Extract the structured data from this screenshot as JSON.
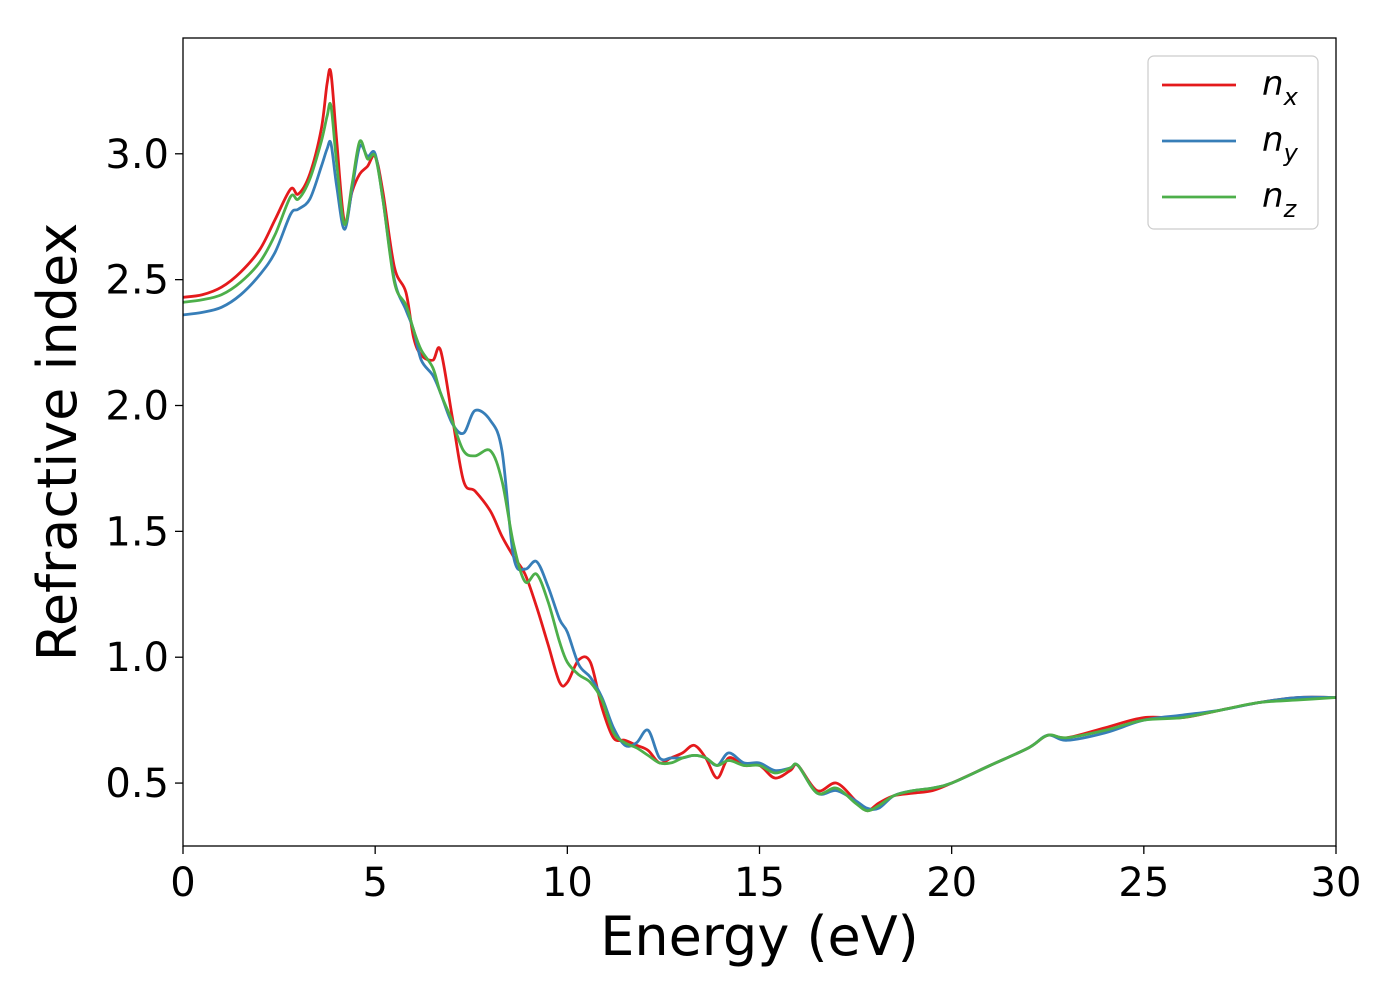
{
  "chart_data": {
    "type": "line",
    "title": "",
    "xlabel": "Energy (eV)",
    "ylabel": "Refractive index",
    "xlim": [
      0,
      30
    ],
    "ylim": [
      0.25,
      3.46
    ],
    "xticks": [
      0,
      5,
      10,
      15,
      20,
      25,
      30
    ],
    "xtick_labels": [
      "0",
      "5",
      "10",
      "15",
      "20",
      "25",
      "30"
    ],
    "yticks": [
      0.5,
      1.0,
      1.5,
      2.0,
      2.5,
      3.0
    ],
    "ytick_labels": [
      "0.5",
      "1.0",
      "1.5",
      "2.0",
      "2.5",
      "3.0"
    ],
    "grid": false,
    "legend_position": "top-right",
    "series": [
      {
        "name": "n_x",
        "legend_base": "n",
        "legend_sub": "x",
        "color": "#e41a1c",
        "x": [
          0,
          0.5,
          1.0,
          1.5,
          2.0,
          2.4,
          2.8,
          3.0,
          3.3,
          3.6,
          3.75,
          3.85,
          4.0,
          4.2,
          4.4,
          4.6,
          4.8,
          5.0,
          5.2,
          5.5,
          5.8,
          6.0,
          6.2,
          6.5,
          6.7,
          7.0,
          7.3,
          7.6,
          8.0,
          8.3,
          8.6,
          8.9,
          9.2,
          9.5,
          9.8,
          10.0,
          10.3,
          10.6,
          10.9,
          11.2,
          11.5,
          11.8,
          12.1,
          12.4,
          12.7,
          13.0,
          13.3,
          13.6,
          13.9,
          14.2,
          14.6,
          15.0,
          15.4,
          15.8,
          16.0,
          16.5,
          17.0,
          17.5,
          17.8,
          18.1,
          18.5,
          19.0,
          19.5,
          20.0,
          21.0,
          22.0,
          22.5,
          23.0,
          24.0,
          25.0,
          26.0,
          27.0,
          28.0,
          29.0,
          30.0
        ],
        "y": [
          2.43,
          2.44,
          2.47,
          2.53,
          2.62,
          2.74,
          2.86,
          2.84,
          2.92,
          3.1,
          3.28,
          3.32,
          3.05,
          2.73,
          2.85,
          2.92,
          2.95,
          2.99,
          2.85,
          2.55,
          2.45,
          2.27,
          2.2,
          2.18,
          2.22,
          1.96,
          1.7,
          1.66,
          1.58,
          1.48,
          1.4,
          1.33,
          1.2,
          1.05,
          0.9,
          0.9,
          0.99,
          0.98,
          0.8,
          0.68,
          0.67,
          0.65,
          0.63,
          0.58,
          0.6,
          0.62,
          0.65,
          0.6,
          0.52,
          0.6,
          0.57,
          0.57,
          0.52,
          0.55,
          0.57,
          0.47,
          0.5,
          0.43,
          0.39,
          0.42,
          0.45,
          0.46,
          0.47,
          0.5,
          0.57,
          0.64,
          0.69,
          0.68,
          0.72,
          0.76,
          0.76,
          0.79,
          0.82,
          0.84,
          0.84
        ]
      },
      {
        "name": "n_y",
        "legend_base": "n",
        "legend_sub": "y",
        "color": "#377eb8",
        "x": [
          0,
          0.5,
          1.0,
          1.5,
          2.0,
          2.4,
          2.8,
          3.0,
          3.3,
          3.6,
          3.75,
          3.85,
          4.0,
          4.2,
          4.4,
          4.6,
          4.8,
          5.0,
          5.2,
          5.5,
          5.8,
          6.0,
          6.2,
          6.5,
          6.7,
          7.0,
          7.3,
          7.6,
          8.0,
          8.3,
          8.6,
          8.9,
          9.2,
          9.5,
          9.8,
          10.0,
          10.3,
          10.6,
          10.9,
          11.2,
          11.5,
          11.8,
          12.1,
          12.4,
          12.7,
          13.0,
          13.3,
          13.6,
          13.9,
          14.2,
          14.6,
          15.0,
          15.4,
          15.8,
          16.0,
          16.5,
          17.0,
          17.5,
          17.8,
          18.1,
          18.5,
          19.0,
          19.5,
          20.0,
          21.0,
          22.0,
          22.5,
          23.0,
          24.0,
          25.0,
          26.0,
          27.0,
          28.0,
          29.0,
          30.0
        ],
        "y": [
          2.36,
          2.37,
          2.39,
          2.44,
          2.52,
          2.61,
          2.76,
          2.78,
          2.82,
          2.95,
          3.02,
          3.04,
          2.87,
          2.7,
          2.86,
          3.03,
          2.99,
          3.0,
          2.82,
          2.5,
          2.38,
          2.3,
          2.18,
          2.12,
          2.05,
          1.93,
          1.89,
          1.98,
          1.94,
          1.82,
          1.4,
          1.35,
          1.38,
          1.28,
          1.15,
          1.1,
          0.97,
          0.92,
          0.84,
          0.72,
          0.65,
          0.66,
          0.71,
          0.6,
          0.6,
          0.6,
          0.61,
          0.6,
          0.57,
          0.62,
          0.58,
          0.58,
          0.55,
          0.56,
          0.57,
          0.46,
          0.47,
          0.43,
          0.4,
          0.4,
          0.45,
          0.47,
          0.48,
          0.5,
          0.57,
          0.64,
          0.69,
          0.67,
          0.7,
          0.75,
          0.77,
          0.79,
          0.82,
          0.84,
          0.84
        ]
      },
      {
        "name": "n_z",
        "legend_base": "n",
        "legend_sub": "z",
        "color": "#4daf4a",
        "x": [
          0,
          0.5,
          1.0,
          1.5,
          2.0,
          2.4,
          2.8,
          3.0,
          3.3,
          3.6,
          3.75,
          3.85,
          4.0,
          4.2,
          4.4,
          4.6,
          4.8,
          5.0,
          5.2,
          5.5,
          5.8,
          6.0,
          6.2,
          6.5,
          6.7,
          7.0,
          7.3,
          7.6,
          8.0,
          8.3,
          8.6,
          8.9,
          9.2,
          9.5,
          9.8,
          10.0,
          10.3,
          10.6,
          10.9,
          11.2,
          11.5,
          11.8,
          12.1,
          12.4,
          12.7,
          13.0,
          13.3,
          13.6,
          13.9,
          14.2,
          14.6,
          15.0,
          15.4,
          15.8,
          16.0,
          16.5,
          17.0,
          17.5,
          17.8,
          18.1,
          18.5,
          19.0,
          19.5,
          20.0,
          21.0,
          22.0,
          22.5,
          23.0,
          24.0,
          25.0,
          26.0,
          27.0,
          28.0,
          29.0,
          30.0
        ],
        "y": [
          2.41,
          2.42,
          2.44,
          2.49,
          2.57,
          2.68,
          2.83,
          2.82,
          2.9,
          3.05,
          3.15,
          3.19,
          2.96,
          2.72,
          2.88,
          3.05,
          2.98,
          2.99,
          2.82,
          2.49,
          2.4,
          2.3,
          2.22,
          2.15,
          2.05,
          1.94,
          1.82,
          1.8,
          1.82,
          1.7,
          1.45,
          1.3,
          1.33,
          1.22,
          1.06,
          0.98,
          0.93,
          0.9,
          0.83,
          0.7,
          0.66,
          0.64,
          0.61,
          0.58,
          0.58,
          0.6,
          0.61,
          0.6,
          0.57,
          0.59,
          0.57,
          0.57,
          0.54,
          0.56,
          0.57,
          0.46,
          0.48,
          0.42,
          0.39,
          0.41,
          0.45,
          0.47,
          0.48,
          0.5,
          0.57,
          0.64,
          0.69,
          0.68,
          0.71,
          0.75,
          0.76,
          0.79,
          0.82,
          0.83,
          0.84
        ]
      }
    ]
  }
}
